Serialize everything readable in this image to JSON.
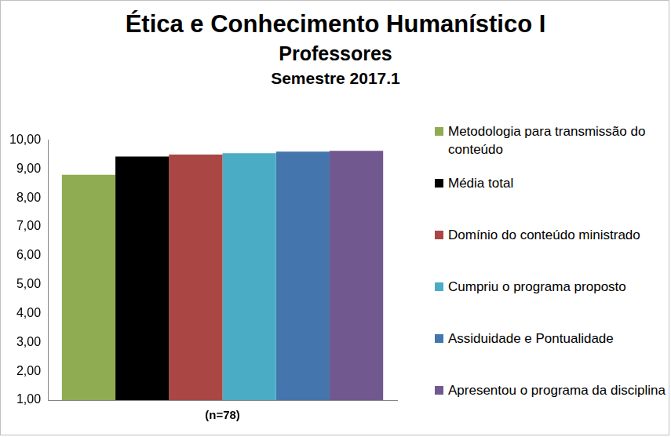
{
  "chart_data": {
    "type": "bar",
    "title": "Ética e Conhecimento Humanístico I",
    "subtitle": [
      "Professores",
      "Semestre 2017.1"
    ],
    "categories": [
      "(n=78)"
    ],
    "series": [
      {
        "name": "Metodologia para transmissão do conteúdo",
        "color": "#8fac52",
        "values": [
          8.8
        ]
      },
      {
        "name": "Média total",
        "color": "#000000",
        "values": [
          9.43
        ]
      },
      {
        "name": "Domínio do conteúdo ministrado",
        "color": "#aa4643",
        "values": [
          9.5
        ]
      },
      {
        "name": "Cumpriu o programa proposto",
        "color": "#4bacc6",
        "values": [
          9.55
        ]
      },
      {
        "name": "Assiduidade e Pontualidade",
        "color": "#4575ad",
        "values": [
          9.6
        ]
      },
      {
        "name": "Apresentou o programa da disciplina",
        "color": "#71588f",
        "values": [
          9.63
        ]
      }
    ],
    "ylim": [
      1,
      10
    ],
    "yticks": [
      {
        "value": 1,
        "label": "1,00"
      },
      {
        "value": 2,
        "label": "2,00"
      },
      {
        "value": 3,
        "label": "3,00"
      },
      {
        "value": 4,
        "label": "4,00"
      },
      {
        "value": 5,
        "label": "5,00"
      },
      {
        "value": 6,
        "label": "6,00"
      },
      {
        "value": 7,
        "label": "7,00"
      },
      {
        "value": 8,
        "label": "8,00"
      },
      {
        "value": 9,
        "label": "9,00"
      },
      {
        "value": 10,
        "label": "10,00"
      }
    ],
    "grid": false,
    "legend": "right"
  }
}
